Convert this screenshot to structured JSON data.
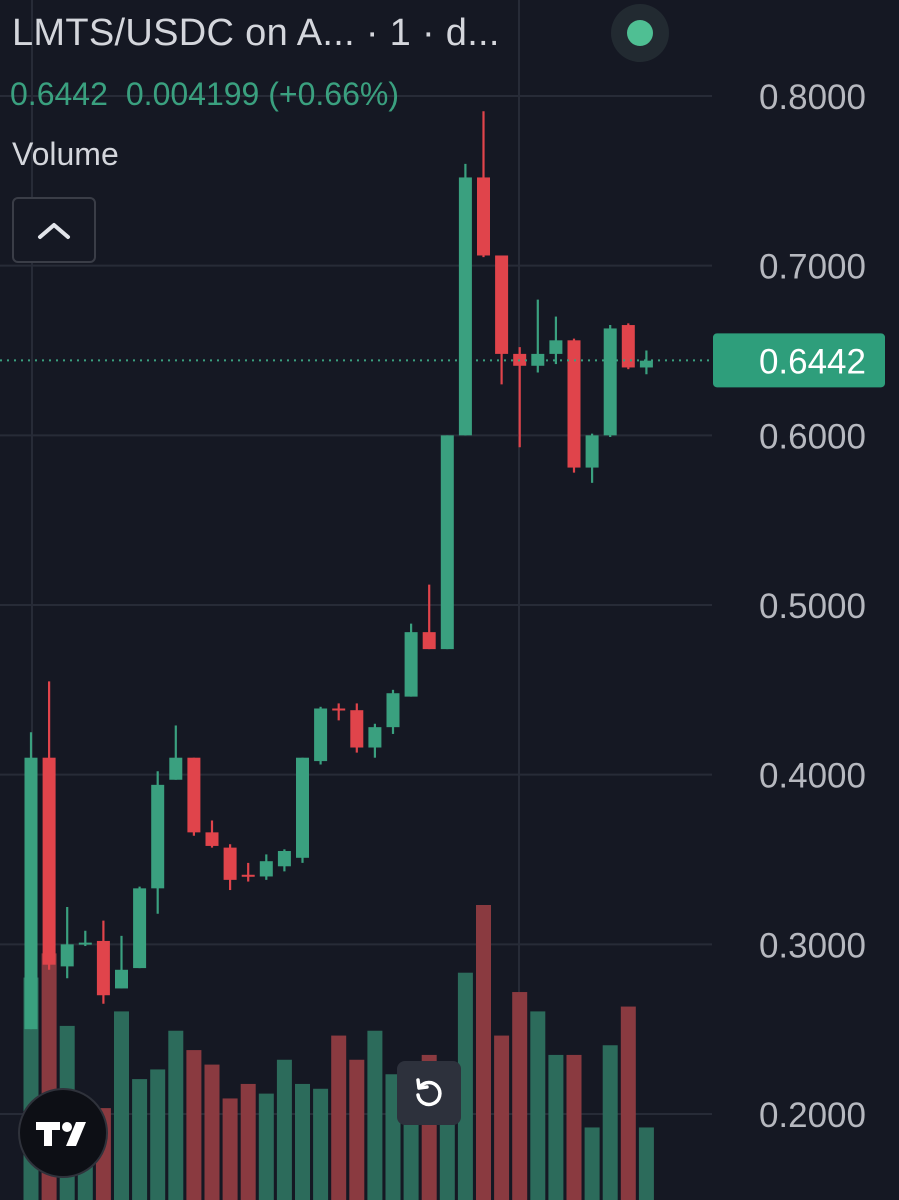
{
  "header": {
    "pair": "LMTS/USDC on A...",
    "interval": " · 1 · d..."
  },
  "legend": {
    "price": "0.6442",
    "change": "0.004199",
    "change_pct": "(+0.66%)",
    "volume_label": "Volume"
  },
  "colors": {
    "background": "#151823",
    "up": "#3aa07f",
    "down": "#e0444b",
    "vol_up": "#2c6b5b",
    "vol_down": "#8a3a40",
    "grid": "#272b37",
    "axis_text": "#b6b8bf",
    "current_price_bg": "#2e9e7b"
  },
  "icons": {
    "collapse": "chevron-up-icon",
    "reset": "rotate-ccw-icon",
    "logo": "tradingview-logo-icon",
    "status": "status-dot-icon"
  },
  "chart_data": {
    "type": "candlestick",
    "title": "LMTS/USDC",
    "y_axis": {
      "ticks": [
        "0.8000",
        "0.7000",
        "0.6000",
        "0.5000",
        "0.4000",
        "0.3000",
        "0.2000"
      ],
      "range": [
        0.15,
        0.835
      ]
    },
    "current_price": "0.6442",
    "grid": true,
    "candles": [
      {
        "o": 0.25,
        "h": 0.425,
        "l": 0.25,
        "c": 0.41
      },
      {
        "o": 0.41,
        "h": 0.455,
        "l": 0.285,
        "c": 0.288
      },
      {
        "o": 0.287,
        "h": 0.322,
        "l": 0.28,
        "c": 0.3
      },
      {
        "o": 0.3,
        "h": 0.308,
        "l": 0.299,
        "c": 0.301
      },
      {
        "o": 0.302,
        "h": 0.314,
        "l": 0.265,
        "c": 0.27
      },
      {
        "o": 0.274,
        "h": 0.305,
        "l": 0.274,
        "c": 0.285
      },
      {
        "o": 0.286,
        "h": 0.334,
        "l": 0.286,
        "c": 0.333
      },
      {
        "o": 0.333,
        "h": 0.402,
        "l": 0.318,
        "c": 0.394
      },
      {
        "o": 0.397,
        "h": 0.429,
        "l": 0.397,
        "c": 0.41
      },
      {
        "o": 0.41,
        "h": 0.41,
        "l": 0.364,
        "c": 0.366
      },
      {
        "o": 0.366,
        "h": 0.373,
        "l": 0.357,
        "c": 0.358
      },
      {
        "o": 0.357,
        "h": 0.359,
        "l": 0.332,
        "c": 0.338
      },
      {
        "o": 0.341,
        "h": 0.348,
        "l": 0.337,
        "c": 0.34
      },
      {
        "o": 0.34,
        "h": 0.353,
        "l": 0.338,
        "c": 0.349
      },
      {
        "o": 0.346,
        "h": 0.356,
        "l": 0.343,
        "c": 0.355
      },
      {
        "o": 0.351,
        "h": 0.41,
        "l": 0.348,
        "c": 0.41
      },
      {
        "o": 0.408,
        "h": 0.44,
        "l": 0.406,
        "c": 0.439
      },
      {
        "o": 0.439,
        "h": 0.442,
        "l": 0.432,
        "c": 0.438
      },
      {
        "o": 0.438,
        "h": 0.442,
        "l": 0.413,
        "c": 0.416
      },
      {
        "o": 0.416,
        "h": 0.43,
        "l": 0.41,
        "c": 0.428
      },
      {
        "o": 0.428,
        "h": 0.45,
        "l": 0.424,
        "c": 0.448
      },
      {
        "o": 0.446,
        "h": 0.489,
        "l": 0.446,
        "c": 0.484
      },
      {
        "o": 0.484,
        "h": 0.512,
        "l": 0.474,
        "c": 0.474
      },
      {
        "o": 0.474,
        "h": 0.6,
        "l": 0.474,
        "c": 0.6
      },
      {
        "o": 0.6,
        "h": 0.76,
        "l": 0.6,
        "c": 0.752
      },
      {
        "o": 0.752,
        "h": 0.791,
        "l": 0.705,
        "c": 0.706
      },
      {
        "o": 0.706,
        "h": 0.706,
        "l": 0.63,
        "c": 0.648
      },
      {
        "o": 0.648,
        "h": 0.652,
        "l": 0.593,
        "c": 0.641
      },
      {
        "o": 0.641,
        "h": 0.68,
        "l": 0.637,
        "c": 0.648
      },
      {
        "o": 0.648,
        "h": 0.67,
        "l": 0.642,
        "c": 0.656
      },
      {
        "o": 0.656,
        "h": 0.657,
        "l": 0.578,
        "c": 0.581
      },
      {
        "o": 0.581,
        "h": 0.601,
        "l": 0.572,
        "c": 0.6
      },
      {
        "o": 0.6,
        "h": 0.665,
        "l": 0.599,
        "c": 0.663
      },
      {
        "o": 0.665,
        "h": 0.666,
        "l": 0.639,
        "c": 0.64
      },
      {
        "o": 0.64,
        "h": 0.65,
        "l": 0.636,
        "c": 0.644
      }
    ],
    "volume": [
      0.46,
      0.51,
      0.36,
      0.12,
      0.19,
      0.39,
      0.25,
      0.27,
      0.35,
      0.31,
      0.28,
      0.21,
      0.24,
      0.22,
      0.29,
      0.24,
      0.23,
      0.34,
      0.29,
      0.35,
      0.26,
      0.28,
      0.3,
      0.27,
      0.47,
      0.61,
      0.34,
      0.43,
      0.39,
      0.3,
      0.3,
      0.15,
      0.32,
      0.4,
      0.15
    ]
  }
}
